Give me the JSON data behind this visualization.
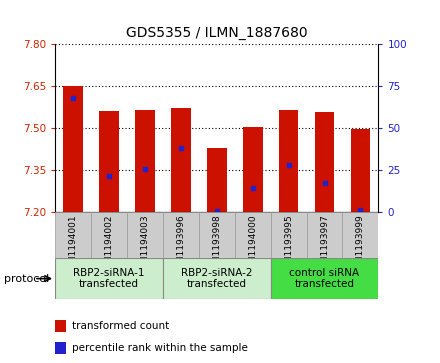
{
  "title": "GDS5355 / ILMN_1887680",
  "samples": [
    "GSM1194001",
    "GSM1194002",
    "GSM1194003",
    "GSM1193996",
    "GSM1193998",
    "GSM1194000",
    "GSM1193995",
    "GSM1193997",
    "GSM1193999"
  ],
  "bar_bottom": 7.2,
  "bar_tops": [
    7.65,
    7.56,
    7.565,
    7.57,
    7.43,
    7.505,
    7.565,
    7.555,
    7.495
  ],
  "blue_dot_y": [
    7.605,
    7.33,
    7.355,
    7.43,
    7.205,
    7.285,
    7.37,
    7.305,
    7.21
  ],
  "ylim_left": [
    7.2,
    7.8
  ],
  "ylim_right": [
    0,
    100
  ],
  "yticks_left": [
    7.2,
    7.35,
    7.5,
    7.65,
    7.8
  ],
  "yticks_right": [
    0,
    25,
    50,
    75,
    100
  ],
  "groups": [
    {
      "label": "RBP2-siRNA-1\ntransfected",
      "start": 0,
      "end": 3,
      "color": "#cceecc"
    },
    {
      "label": "RBP2-siRNA-2\ntransfected",
      "start": 3,
      "end": 6,
      "color": "#cceecc"
    },
    {
      "label": "control siRNA\ntransfected",
      "start": 6,
      "end": 9,
      "color": "#44dd44"
    }
  ],
  "bar_color": "#cc1100",
  "dot_color": "#2222cc",
  "bar_width": 0.55,
  "plot_bg": "#ffffff",
  "sample_cell_bg": "#dddddd",
  "legend_items": [
    {
      "color": "#cc1100",
      "label": "transformed count"
    },
    {
      "color": "#2222cc",
      "label": "percentile rank within the sample"
    }
  ]
}
